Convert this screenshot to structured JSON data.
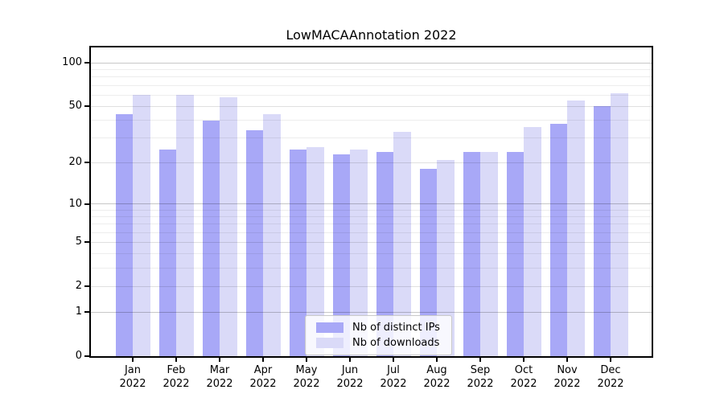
{
  "chart_data": {
    "type": "bar",
    "title": "LowMACAAnnotation 2022",
    "categories": [
      "Jan",
      "Feb",
      "Mar",
      "Apr",
      "May",
      "Jun",
      "Jul",
      "Aug",
      "Sep",
      "Oct",
      "Nov",
      "Dec"
    ],
    "year": "2022",
    "series": [
      {
        "name": "Nb of distinct IPs",
        "color": "#a8a8f7",
        "values": [
          44,
          25,
          40,
          34,
          25,
          23,
          24,
          18,
          24,
          24,
          38,
          50
        ]
      },
      {
        "name": "Nb of downloads",
        "color": "#dadaf8",
        "values": [
          60,
          60,
          58,
          44,
          26,
          25,
          33,
          21,
          24,
          36,
          55,
          62
        ]
      }
    ],
    "xlabel": "",
    "ylabel": "",
    "yscale": "log1p",
    "ylim": [
      0,
      128
    ],
    "yticks": [
      0,
      1,
      2,
      5,
      10,
      20,
      50,
      100
    ],
    "gridlines_light": [
      3,
      4,
      6,
      7,
      8,
      9,
      30,
      40,
      60,
      70,
      80,
      90
    ],
    "gridlines_medium": [
      2,
      5,
      20,
      50
    ],
    "gridlines_dark": [
      1,
      10,
      100
    ],
    "grid": true,
    "legend_position": "lower center"
  }
}
